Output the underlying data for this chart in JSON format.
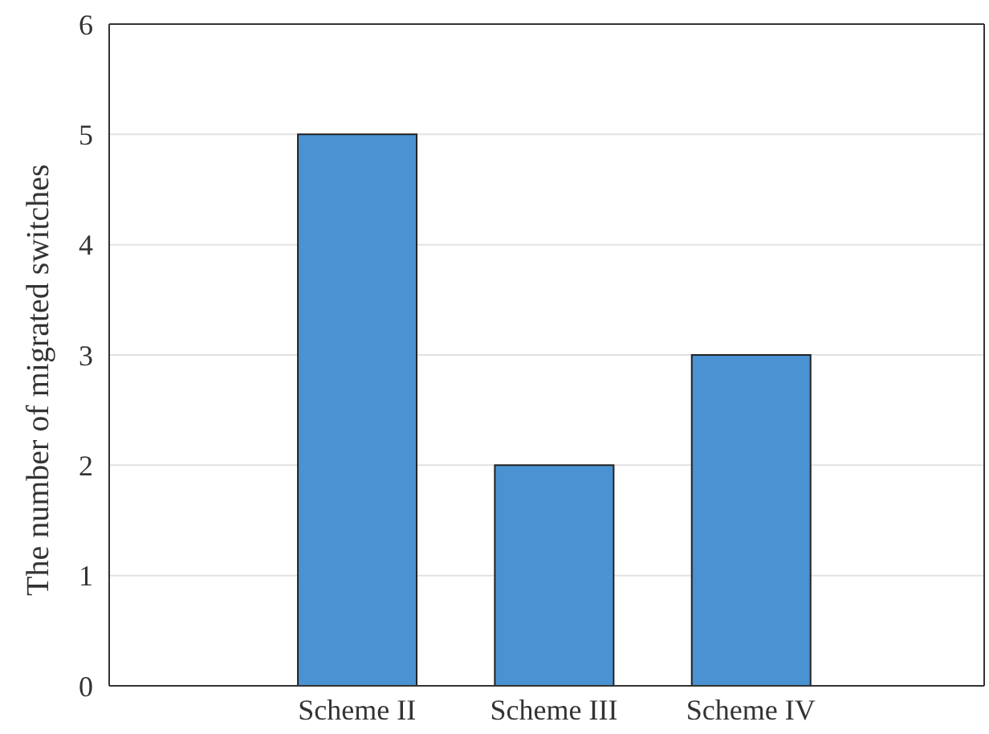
{
  "chart_data": {
    "type": "bar",
    "ylabel": "The number of migrated switches",
    "categories": [
      "Scheme II",
      "Scheme III",
      "Scheme IV"
    ],
    "values": [
      5,
      2,
      3
    ],
    "color": "#4a92d2",
    "ylim": [
      0,
      6
    ],
    "yticks": [
      0,
      1,
      2,
      3,
      4,
      5,
      6
    ],
    "grid": "y"
  }
}
